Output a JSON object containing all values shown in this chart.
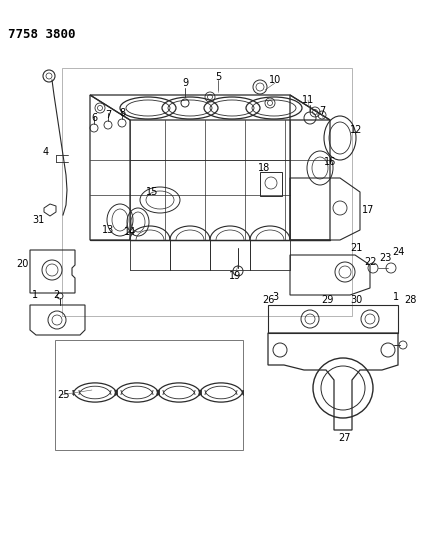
{
  "title": "7758 3800",
  "bg": "#ffffff",
  "lc": "#2a2a2a",
  "tc": "#000000",
  "fig_w": 4.28,
  "fig_h": 5.33,
  "dpi": 100
}
